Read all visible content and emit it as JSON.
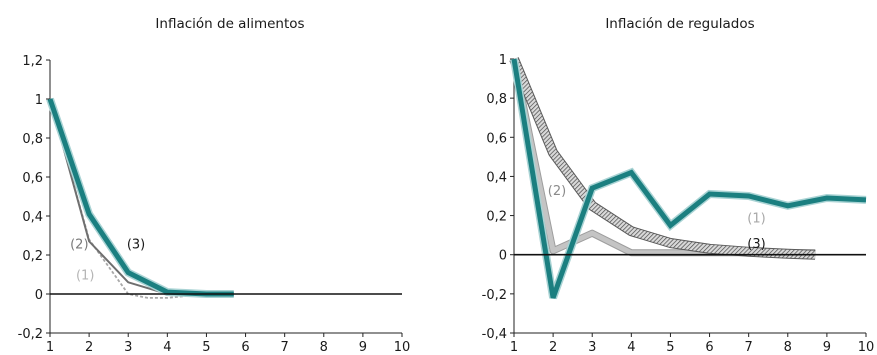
{
  "chart_data": [
    {
      "type": "line",
      "title": "Inflación de alimentos",
      "xlabel": "",
      "ylabel": "",
      "xlim": [
        1,
        10
      ],
      "ylim": [
        -0.2,
        1.2
      ],
      "x_ticks": [
        "1",
        "2",
        "3",
        "4",
        "5",
        "6",
        "7",
        "8",
        "9",
        "10"
      ],
      "y_ticks": [
        "-0,2",
        "0",
        "0,2",
        "0,4",
        "0,6",
        "0,8",
        "1",
        "1,2"
      ],
      "series": [
        {
          "name": "(1)",
          "x": [
            1,
            2,
            3,
            3.5,
            4,
            4.5,
            5
          ],
          "y": [
            1,
            0.28,
            0.0,
            -0.02,
            -0.02,
            -0.01,
            0.0
          ],
          "color": "#a8a8a8",
          "style": "dashed"
        },
        {
          "name": "(2)",
          "x": [
            1,
            2,
            3,
            4,
            5,
            5.7
          ],
          "y": [
            1,
            0.27,
            0.06,
            0.0,
            0.0,
            0.0
          ],
          "color": "#6f6f6f",
          "style": "solid"
        },
        {
          "name": "(3)",
          "x": [
            1,
            2,
            3,
            4,
            5,
            5.7
          ],
          "y": [
            1,
            0.41,
            0.11,
            0.01,
            0.0,
            0.0
          ],
          "color": "#1b7f80",
          "style": "thick"
        }
      ],
      "annotations": [
        {
          "text": "(2)",
          "x": 1.75,
          "y": 0.26,
          "color": "#7a7a7a"
        },
        {
          "text": "(1)",
          "x": 1.9,
          "y": 0.1,
          "color": "#b5b5b5"
        },
        {
          "text": "(3)",
          "x": 3.2,
          "y": 0.26,
          "color": "#1a1a1a"
        }
      ]
    },
    {
      "type": "line",
      "title": "Inflación de regulados",
      "xlabel": "",
      "ylabel": "",
      "xlim": [
        1,
        10
      ],
      "ylim": [
        -0.4,
        1.0
      ],
      "x_ticks": [
        "1",
        "2",
        "3",
        "4",
        "5",
        "6",
        "7",
        "8",
        "9",
        "10"
      ],
      "y_ticks": [
        "-0,4",
        "-0,2",
        "0",
        "0,2",
        "0,4",
        "0,6",
        "0,8",
        "1"
      ],
      "series": [
        {
          "name": "(1)",
          "x": [
            1,
            2,
            3,
            4,
            5,
            6,
            7,
            8,
            9,
            10
          ],
          "y": [
            1,
            -0.22,
            0.34,
            0.42,
            0.15,
            0.31,
            0.3,
            0.25,
            0.29,
            0.28
          ],
          "color": "#1b7f80",
          "style": "thick"
        },
        {
          "name": "(2)",
          "x": [
            1,
            2,
            3,
            4,
            5,
            6,
            7,
            8,
            8.7
          ],
          "y": [
            1,
            0.02,
            0.11,
            0.01,
            0.01,
            0.01,
            0.01,
            0.01,
            0.01
          ],
          "color": "#c4c4c4",
          "style": "band"
        },
        {
          "name": "(3)",
          "x": [
            1,
            2,
            3,
            4,
            5,
            6,
            7,
            8,
            8.7
          ],
          "y": [
            1,
            0.52,
            0.25,
            0.12,
            0.06,
            0.03,
            0.015,
            0.005,
            0.0
          ],
          "color": "#6f6f6f",
          "style": "hatched"
        }
      ],
      "annotations": [
        {
          "text": "(2)",
          "x": 2.1,
          "y": 0.33,
          "color": "#8a8a8a"
        },
        {
          "text": "(1)",
          "x": 7.2,
          "y": 0.19,
          "color": "#a8a8a8"
        },
        {
          "text": "(3)",
          "x": 7.2,
          "y": 0.06,
          "color": "#1a1a1a"
        }
      ]
    }
  ]
}
